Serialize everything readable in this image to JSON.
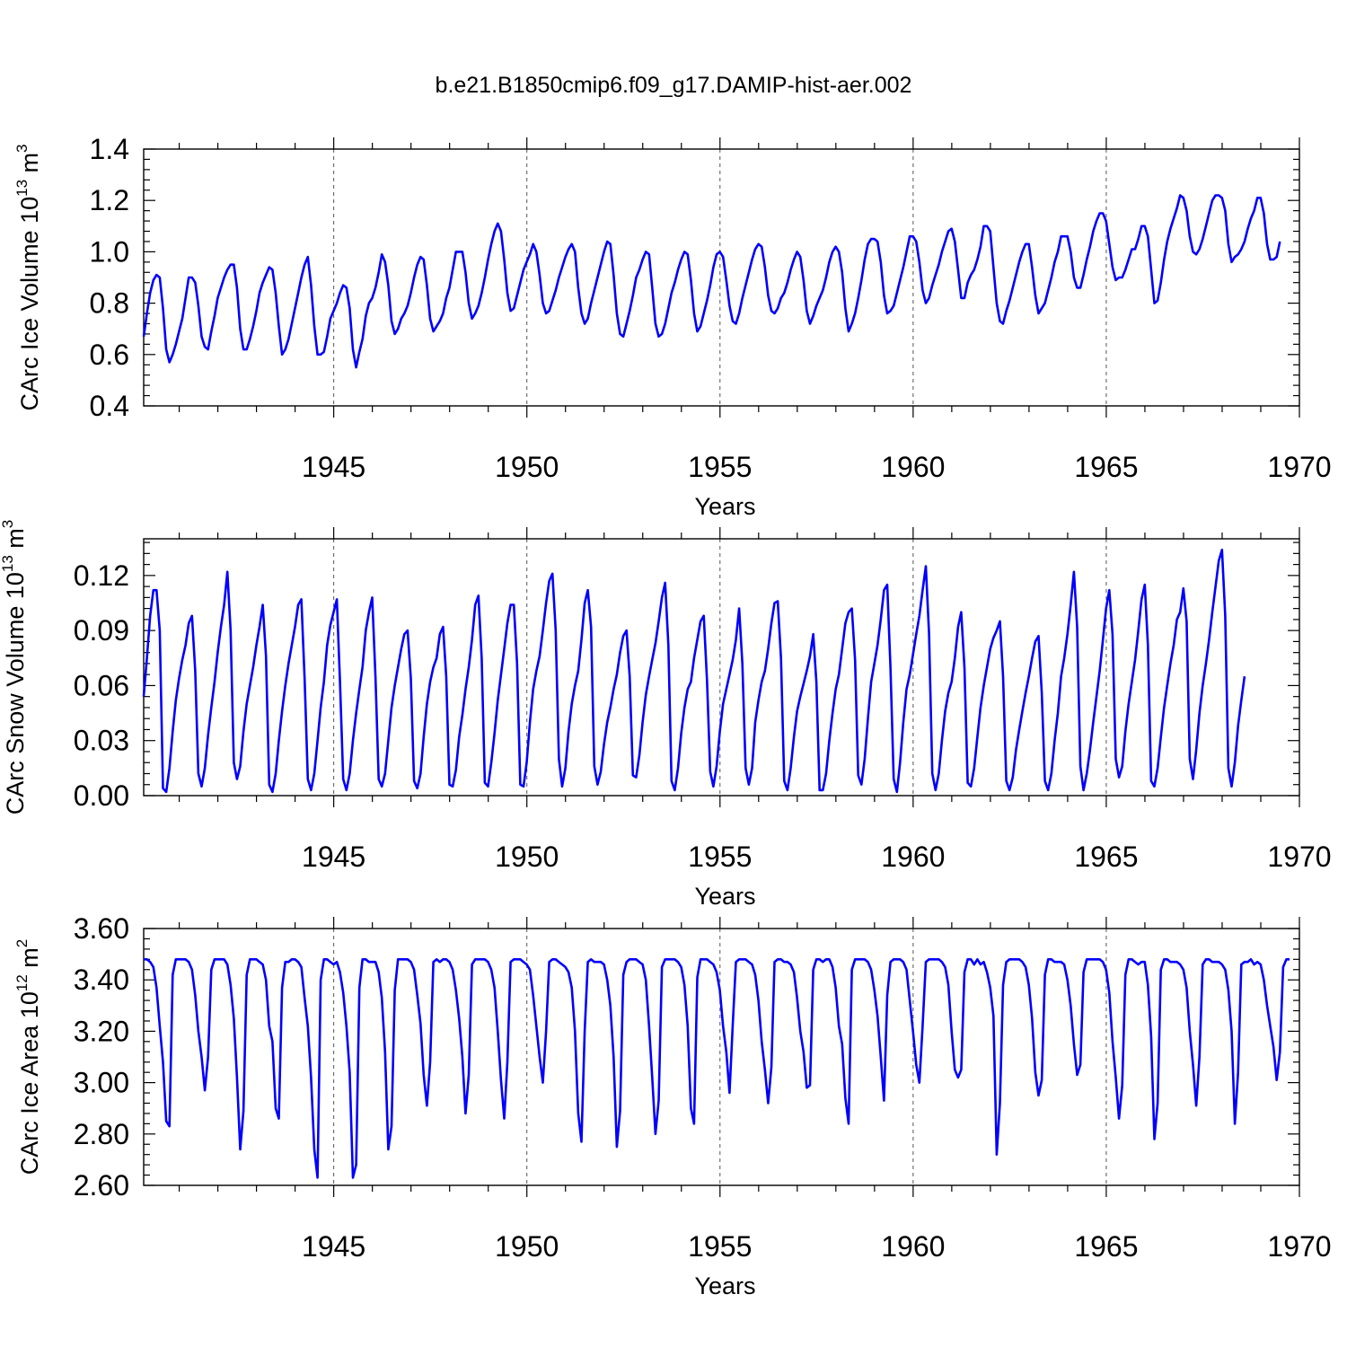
{
  "title": "b.e21.B1850cmip6.f09_g17.DAMIP-hist-aer.002",
  "chart_data": [
    {
      "type": "line",
      "name": "ice-volume",
      "ylabel_main": "CArc Ice Volume 10",
      "ylabel_exp": "13",
      "ylabel_unit": " m",
      "ylabel_unit_exp": "3",
      "xlabel": "Years",
      "xlim": [
        1940.08,
        1970.0
      ],
      "ylim": [
        0.4,
        1.4
      ],
      "xticks": [
        "1945",
        "1950",
        "1955",
        "1960",
        "1965",
        "1970"
      ],
      "yticks": [
        "0.4",
        "0.6",
        "0.8",
        "1.0",
        "1.2",
        "1.4"
      ],
      "line_color": "#0000ff",
      "grid": "dashed vertical lines at 1945, 1950, 1955, 1960, 1965",
      "x_start": 1940.08,
      "x_step": 0.08333,
      "values": [
        0.67,
        0.76,
        0.84,
        0.89,
        0.91,
        0.9,
        0.78,
        0.62,
        0.57,
        0.6,
        0.64,
        0.69,
        0.74,
        0.82,
        0.9,
        0.9,
        0.88,
        0.79,
        0.67,
        0.63,
        0.62,
        0.69,
        0.75,
        0.82,
        0.86,
        0.9,
        0.93,
        0.95,
        0.95,
        0.86,
        0.7,
        0.62,
        0.62,
        0.66,
        0.71,
        0.77,
        0.84,
        0.88,
        0.91,
        0.94,
        0.93,
        0.84,
        0.71,
        0.6,
        0.62,
        0.66,
        0.72,
        0.78,
        0.84,
        0.9,
        0.95,
        0.98,
        0.87,
        0.71,
        0.6,
        0.6,
        0.61,
        0.67,
        0.74,
        0.77,
        0.8,
        0.84,
        0.87,
        0.86,
        0.78,
        0.62,
        0.55,
        0.61,
        0.66,
        0.75,
        0.8,
        0.82,
        0.86,
        0.92,
        0.99,
        0.96,
        0.87,
        0.73,
        0.68,
        0.7,
        0.74,
        0.76,
        0.79,
        0.84,
        0.9,
        0.95,
        0.98,
        0.97,
        0.87,
        0.74,
        0.69,
        0.71,
        0.73,
        0.76,
        0.82,
        0.86,
        0.93,
        1.0,
        1.0,
        1.0,
        0.92,
        0.8,
        0.74,
        0.76,
        0.79,
        0.84,
        0.9,
        0.97,
        1.03,
        1.08,
        1.11,
        1.08,
        0.97,
        0.84,
        0.77,
        0.78,
        0.83,
        0.88,
        0.93,
        0.96,
        0.99,
        1.03,
        1.0,
        0.91,
        0.8,
        0.76,
        0.77,
        0.81,
        0.85,
        0.9,
        0.94,
        0.98,
        1.01,
        1.03,
        1.0,
        0.86,
        0.76,
        0.72,
        0.74,
        0.8,
        0.85,
        0.9,
        0.95,
        1.0,
        1.04,
        1.03,
        0.91,
        0.76,
        0.68,
        0.67,
        0.72,
        0.77,
        0.83,
        0.9,
        0.93,
        0.97,
        1.0,
        0.99,
        0.86,
        0.72,
        0.67,
        0.68,
        0.72,
        0.78,
        0.84,
        0.88,
        0.93,
        0.97,
        1.0,
        0.99,
        0.89,
        0.76,
        0.69,
        0.71,
        0.76,
        0.81,
        0.87,
        0.94,
        0.99,
        1.0,
        0.98,
        0.89,
        0.79,
        0.73,
        0.72,
        0.76,
        0.82,
        0.87,
        0.92,
        0.97,
        1.01,
        1.03,
        1.02,
        0.94,
        0.83,
        0.77,
        0.76,
        0.78,
        0.82,
        0.84,
        0.88,
        0.93,
        0.97,
        1.0,
        0.98,
        0.89,
        0.77,
        0.72,
        0.75,
        0.79,
        0.82,
        0.85,
        0.9,
        0.96,
        1.0,
        1.02,
        1.0,
        0.92,
        0.78,
        0.69,
        0.72,
        0.76,
        0.82,
        0.89,
        0.97,
        1.03,
        1.05,
        1.05,
        1.04,
        0.96,
        0.83,
        0.76,
        0.77,
        0.79,
        0.84,
        0.89,
        0.94,
        1.0,
        1.06,
        1.06,
        1.04,
        0.96,
        0.85,
        0.8,
        0.82,
        0.87,
        0.91,
        0.95,
        1.0,
        1.04,
        1.08,
        1.09,
        1.04,
        0.93,
        0.82,
        0.82,
        0.88,
        0.91,
        0.93,
        0.97,
        1.02,
        1.1,
        1.1,
        1.08,
        0.94,
        0.8,
        0.73,
        0.72,
        0.77,
        0.81,
        0.86,
        0.91,
        0.96,
        1.0,
        1.03,
        1.03,
        0.94,
        0.83,
        0.76,
        0.78,
        0.8,
        0.85,
        0.9,
        0.96,
        1.0,
        1.06,
        1.06,
        1.06,
        1.0,
        0.9,
        0.86,
        0.86,
        0.91,
        0.97,
        1.02,
        1.08,
        1.12,
        1.15,
        1.15,
        1.12,
        1.03,
        0.94,
        0.89,
        0.9,
        0.9,
        0.93,
        0.97,
        1.01,
        1.01,
        1.05,
        1.1,
        1.1,
        1.06,
        0.93,
        0.8,
        0.81,
        0.88,
        0.97,
        1.04,
        1.09,
        1.13,
        1.17,
        1.22,
        1.21,
        1.16,
        1.06,
        1.0,
        0.99,
        1.01,
        1.05,
        1.1,
        1.15,
        1.2,
        1.22,
        1.22,
        1.21,
        1.16,
        1.03,
        0.96,
        0.98,
        0.99,
        1.01,
        1.04,
        1.09,
        1.13,
        1.16,
        1.21,
        1.21,
        1.15,
        1.03,
        0.97,
        0.97,
        0.98,
        1.04
      ]
    },
    {
      "type": "line",
      "name": "snow-volume",
      "ylabel_main": "CArc Snow Volume 10",
      "ylabel_exp": "13",
      "ylabel_unit": " m",
      "ylabel_unit_exp": "3",
      "xlabel": "Years",
      "xlim": [
        1940.08,
        1970.0
      ],
      "ylim": [
        0.0,
        0.14
      ],
      "xticks": [
        "1945",
        "1950",
        "1955",
        "1960",
        "1965",
        "1970"
      ],
      "yticks": [
        "0.00",
        "0.03",
        "0.06",
        "0.09",
        "0.12"
      ],
      "line_color": "#0000ff",
      "grid": "dashed vertical lines at 1945, 1950, 1955, 1960, 1965",
      "x_start": 1940.08,
      "x_step": 0.08333,
      "values": [
        0.054,
        0.075,
        0.098,
        0.112,
        0.112,
        0.09,
        0.004,
        0.002,
        0.015,
        0.035,
        0.052,
        0.064,
        0.074,
        0.082,
        0.094,
        0.098,
        0.068,
        0.012,
        0.005,
        0.015,
        0.033,
        0.048,
        0.062,
        0.078,
        0.092,
        0.104,
        0.122,
        0.09,
        0.018,
        0.009,
        0.016,
        0.035,
        0.05,
        0.06,
        0.07,
        0.082,
        0.092,
        0.104,
        0.076,
        0.006,
        0.002,
        0.012,
        0.03,
        0.046,
        0.06,
        0.072,
        0.082,
        0.092,
        0.104,
        0.107,
        0.064,
        0.009,
        0.003,
        0.012,
        0.03,
        0.048,
        0.062,
        0.082,
        0.093,
        0.1,
        0.107,
        0.062,
        0.009,
        0.003,
        0.012,
        0.03,
        0.045,
        0.058,
        0.07,
        0.09,
        0.1,
        0.108,
        0.065,
        0.009,
        0.005,
        0.012,
        0.03,
        0.048,
        0.06,
        0.07,
        0.08,
        0.088,
        0.09,
        0.064,
        0.008,
        0.004,
        0.012,
        0.032,
        0.05,
        0.062,
        0.07,
        0.075,
        0.088,
        0.092,
        0.065,
        0.006,
        0.005,
        0.014,
        0.032,
        0.044,
        0.058,
        0.07,
        0.085,
        0.104,
        0.109,
        0.075,
        0.007,
        0.005,
        0.018,
        0.034,
        0.052,
        0.066,
        0.08,
        0.094,
        0.104,
        0.104,
        0.072,
        0.006,
        0.005,
        0.018,
        0.04,
        0.058,
        0.068,
        0.076,
        0.09,
        0.105,
        0.117,
        0.121,
        0.09,
        0.02,
        0.005,
        0.015,
        0.035,
        0.05,
        0.06,
        0.068,
        0.085,
        0.105,
        0.112,
        0.092,
        0.016,
        0.006,
        0.013,
        0.028,
        0.04,
        0.048,
        0.058,
        0.066,
        0.078,
        0.087,
        0.09,
        0.065,
        0.011,
        0.01,
        0.022,
        0.04,
        0.055,
        0.065,
        0.074,
        0.083,
        0.095,
        0.108,
        0.116,
        0.082,
        0.008,
        0.003,
        0.015,
        0.034,
        0.048,
        0.058,
        0.062,
        0.075,
        0.085,
        0.095,
        0.098,
        0.063,
        0.013,
        0.005,
        0.016,
        0.035,
        0.05,
        0.058,
        0.066,
        0.074,
        0.085,
        0.102,
        0.072,
        0.015,
        0.006,
        0.015,
        0.04,
        0.052,
        0.062,
        0.068,
        0.08,
        0.094,
        0.105,
        0.106,
        0.075,
        0.008,
        0.003,
        0.015,
        0.032,
        0.046,
        0.054,
        0.061,
        0.068,
        0.076,
        0.088,
        0.062,
        0.003,
        0.003,
        0.012,
        0.03,
        0.045,
        0.058,
        0.066,
        0.08,
        0.094,
        0.1,
        0.102,
        0.074,
        0.011,
        0.006,
        0.02,
        0.042,
        0.062,
        0.072,
        0.082,
        0.096,
        0.112,
        0.115,
        0.07,
        0.009,
        0.002,
        0.018,
        0.04,
        0.058,
        0.066,
        0.077,
        0.088,
        0.098,
        0.112,
        0.125,
        0.088,
        0.012,
        0.003,
        0.012,
        0.03,
        0.046,
        0.056,
        0.062,
        0.075,
        0.092,
        0.1,
        0.07,
        0.007,
        0.005,
        0.015,
        0.032,
        0.048,
        0.06,
        0.07,
        0.08,
        0.086,
        0.09,
        0.095,
        0.065,
        0.008,
        0.003,
        0.01,
        0.025,
        0.036,
        0.046,
        0.056,
        0.065,
        0.075,
        0.084,
        0.087,
        0.056,
        0.008,
        0.003,
        0.012,
        0.03,
        0.045,
        0.065,
        0.075,
        0.088,
        0.104,
        0.122,
        0.092,
        0.016,
        0.003,
        0.012,
        0.025,
        0.04,
        0.054,
        0.068,
        0.085,
        0.102,
        0.112,
        0.088,
        0.02,
        0.01,
        0.016,
        0.035,
        0.05,
        0.062,
        0.074,
        0.09,
        0.107,
        0.115,
        0.082,
        0.008,
        0.005,
        0.015,
        0.032,
        0.048,
        0.06,
        0.072,
        0.082,
        0.096,
        0.1,
        0.113,
        0.095,
        0.02,
        0.009,
        0.025,
        0.045,
        0.06,
        0.072,
        0.085,
        0.1,
        0.114,
        0.128,
        0.134,
        0.098,
        0.015,
        0.005,
        0.018,
        0.038,
        0.052,
        0.065
      ]
    },
    {
      "type": "line",
      "name": "ice-area",
      "ylabel_main": "CArc Ice Area 10",
      "ylabel_exp": "12",
      "ylabel_unit": " m",
      "ylabel_unit_exp": "2",
      "xlabel": "Years",
      "xlim": [
        1940.08,
        1970.0
      ],
      "ylim": [
        2.6,
        3.6
      ],
      "xticks": [
        "1945",
        "1950",
        "1955",
        "1960",
        "1965",
        "1970"
      ],
      "yticks": [
        "2.60",
        "2.80",
        "3.00",
        "3.20",
        "3.40",
        "3.60"
      ],
      "line_color": "#0000ff",
      "grid": "dashed vertical lines at 1945, 1950, 1955, 1960, 1965",
      "x_start": 1940.08,
      "x_step": 0.08333,
      "values": [
        3.48,
        3.48,
        3.47,
        3.45,
        3.37,
        3.22,
        3.08,
        2.85,
        2.83,
        3.42,
        3.48,
        3.48,
        3.48,
        3.48,
        3.47,
        3.44,
        3.34,
        3.2,
        3.1,
        2.97,
        3.1,
        3.44,
        3.48,
        3.48,
        3.48,
        3.48,
        3.46,
        3.38,
        3.25,
        3.02,
        2.74,
        2.89,
        3.42,
        3.48,
        3.48,
        3.48,
        3.47,
        3.46,
        3.4,
        3.22,
        3.16,
        2.9,
        2.86,
        3.37,
        3.47,
        3.47,
        3.48,
        3.48,
        3.47,
        3.45,
        3.33,
        3.22,
        3.02,
        2.74,
        2.63,
        3.4,
        3.48,
        3.48,
        3.47,
        3.46,
        3.47,
        3.43,
        3.35,
        3.22,
        3.04,
        2.63,
        2.68,
        3.37,
        3.48,
        3.48,
        3.47,
        3.47,
        3.47,
        3.43,
        3.33,
        3.12,
        2.74,
        2.83,
        3.36,
        3.48,
        3.48,
        3.48,
        3.48,
        3.47,
        3.44,
        3.34,
        3.23,
        3.03,
        2.91,
        3.08,
        3.47,
        3.48,
        3.47,
        3.48,
        3.48,
        3.47,
        3.44,
        3.36,
        3.25,
        3.1,
        2.88,
        3.03,
        3.46,
        3.48,
        3.48,
        3.48,
        3.48,
        3.47,
        3.44,
        3.37,
        3.2,
        3.01,
        2.86,
        3.08,
        3.47,
        3.48,
        3.48,
        3.48,
        3.47,
        3.46,
        3.44,
        3.34,
        3.22,
        3.1,
        3.0,
        3.2,
        3.47,
        3.48,
        3.48,
        3.47,
        3.46,
        3.45,
        3.43,
        3.37,
        3.2,
        2.88,
        2.77,
        3.2,
        3.47,
        3.48,
        3.47,
        3.47,
        3.47,
        3.46,
        3.4,
        3.3,
        3.1,
        2.75,
        2.89,
        3.42,
        3.47,
        3.48,
        3.48,
        3.48,
        3.47,
        3.46,
        3.4,
        3.22,
        3.02,
        2.8,
        2.93,
        3.45,
        3.48,
        3.48,
        3.48,
        3.48,
        3.47,
        3.45,
        3.38,
        3.22,
        2.9,
        2.84,
        3.41,
        3.48,
        3.48,
        3.48,
        3.47,
        3.46,
        3.43,
        3.36,
        3.22,
        3.12,
        2.96,
        3.22,
        3.47,
        3.48,
        3.48,
        3.48,
        3.47,
        3.46,
        3.42,
        3.32,
        3.16,
        3.05,
        2.92,
        3.06,
        3.47,
        3.48,
        3.48,
        3.47,
        3.47,
        3.46,
        3.43,
        3.33,
        3.2,
        3.12,
        2.98,
        2.99,
        3.44,
        3.48,
        3.48,
        3.47,
        3.48,
        3.48,
        3.45,
        3.37,
        3.22,
        3.15,
        2.94,
        2.84,
        3.44,
        3.48,
        3.48,
        3.48,
        3.48,
        3.47,
        3.44,
        3.36,
        3.26,
        3.1,
        2.93,
        3.34,
        3.47,
        3.48,
        3.48,
        3.48,
        3.47,
        3.44,
        3.32,
        3.2,
        3.07,
        3.0,
        3.22,
        3.47,
        3.48,
        3.48,
        3.48,
        3.48,
        3.47,
        3.45,
        3.38,
        3.2,
        3.05,
        3.02,
        3.05,
        3.43,
        3.48,
        3.48,
        3.46,
        3.48,
        3.46,
        3.47,
        3.43,
        3.37,
        3.26,
        2.72,
        2.92,
        3.38,
        3.47,
        3.48,
        3.48,
        3.48,
        3.48,
        3.47,
        3.45,
        3.38,
        3.25,
        3.04,
        2.95,
        3.01,
        3.42,
        3.48,
        3.48,
        3.47,
        3.47,
        3.47,
        3.46,
        3.4,
        3.3,
        3.15,
        3.03,
        3.07,
        3.43,
        3.48,
        3.48,
        3.48,
        3.48,
        3.48,
        3.47,
        3.44,
        3.35,
        3.16,
        3.02,
        2.86,
        2.99,
        3.42,
        3.48,
        3.48,
        3.47,
        3.46,
        3.47,
        3.47,
        3.38,
        3.18,
        2.78,
        2.92,
        3.44,
        3.48,
        3.48,
        3.47,
        3.47,
        3.47,
        3.46,
        3.44,
        3.37,
        3.2,
        3.07,
        2.91,
        3.1,
        3.46,
        3.48,
        3.48,
        3.47,
        3.47,
        3.47,
        3.46,
        3.44,
        3.36,
        3.2,
        2.84,
        3.04,
        3.46,
        3.47,
        3.47,
        3.48,
        3.46,
        3.47,
        3.46,
        3.4,
        3.3,
        3.22,
        3.14,
        3.01,
        3.12,
        3.45,
        3.48,
        3.48
      ]
    }
  ]
}
